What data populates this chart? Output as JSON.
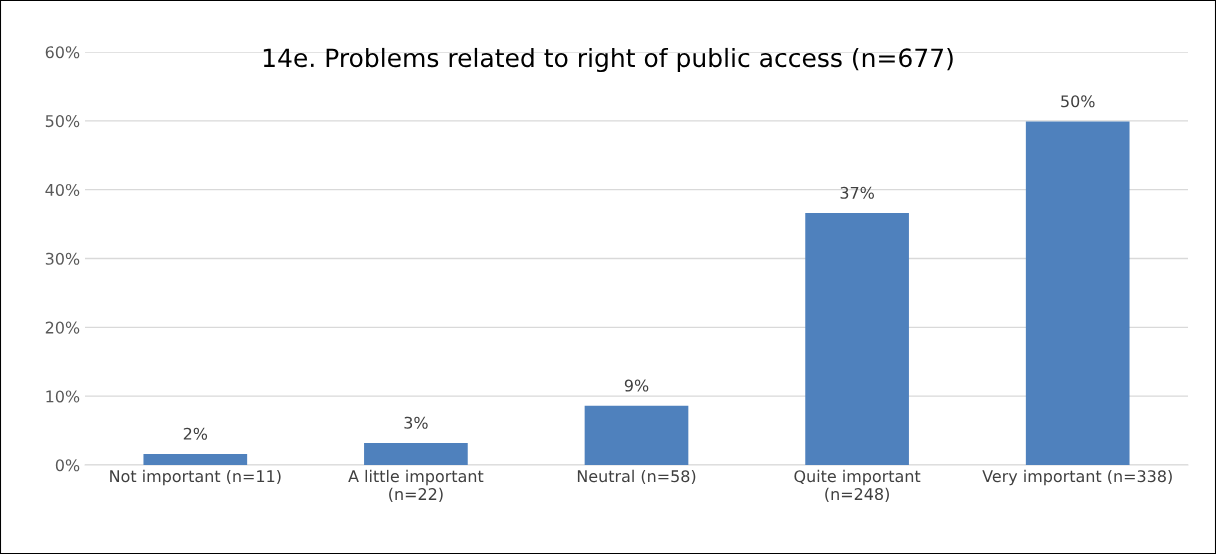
{
  "chart_data": {
    "type": "bar",
    "title": "14e. Problems related to right of public access (n=677)",
    "categories": [
      "Not important (n=11)",
      "A little important\n(n=22)",
      "Neutral (n=58)",
      "Quite important\n(n=248)",
      "Very important (n=338)"
    ],
    "values": [
      1.6,
      3.2,
      8.6,
      36.6,
      49.9
    ],
    "value_labels": [
      "2%",
      "3%",
      "9%",
      "37%",
      "50%"
    ],
    "color": "#4f81bd",
    "ylim": [
      0,
      60
    ],
    "yticks": [
      {
        "value": 0,
        "label": "0%"
      },
      {
        "value": 10,
        "label": "10%"
      },
      {
        "value": 20,
        "label": "20%"
      },
      {
        "value": 30,
        "label": "30%"
      },
      {
        "value": 40,
        "label": "40%"
      },
      {
        "value": 50,
        "label": "50%"
      },
      {
        "value": 60,
        "label": "60%"
      }
    ],
    "grid": "y",
    "legend": false
  }
}
